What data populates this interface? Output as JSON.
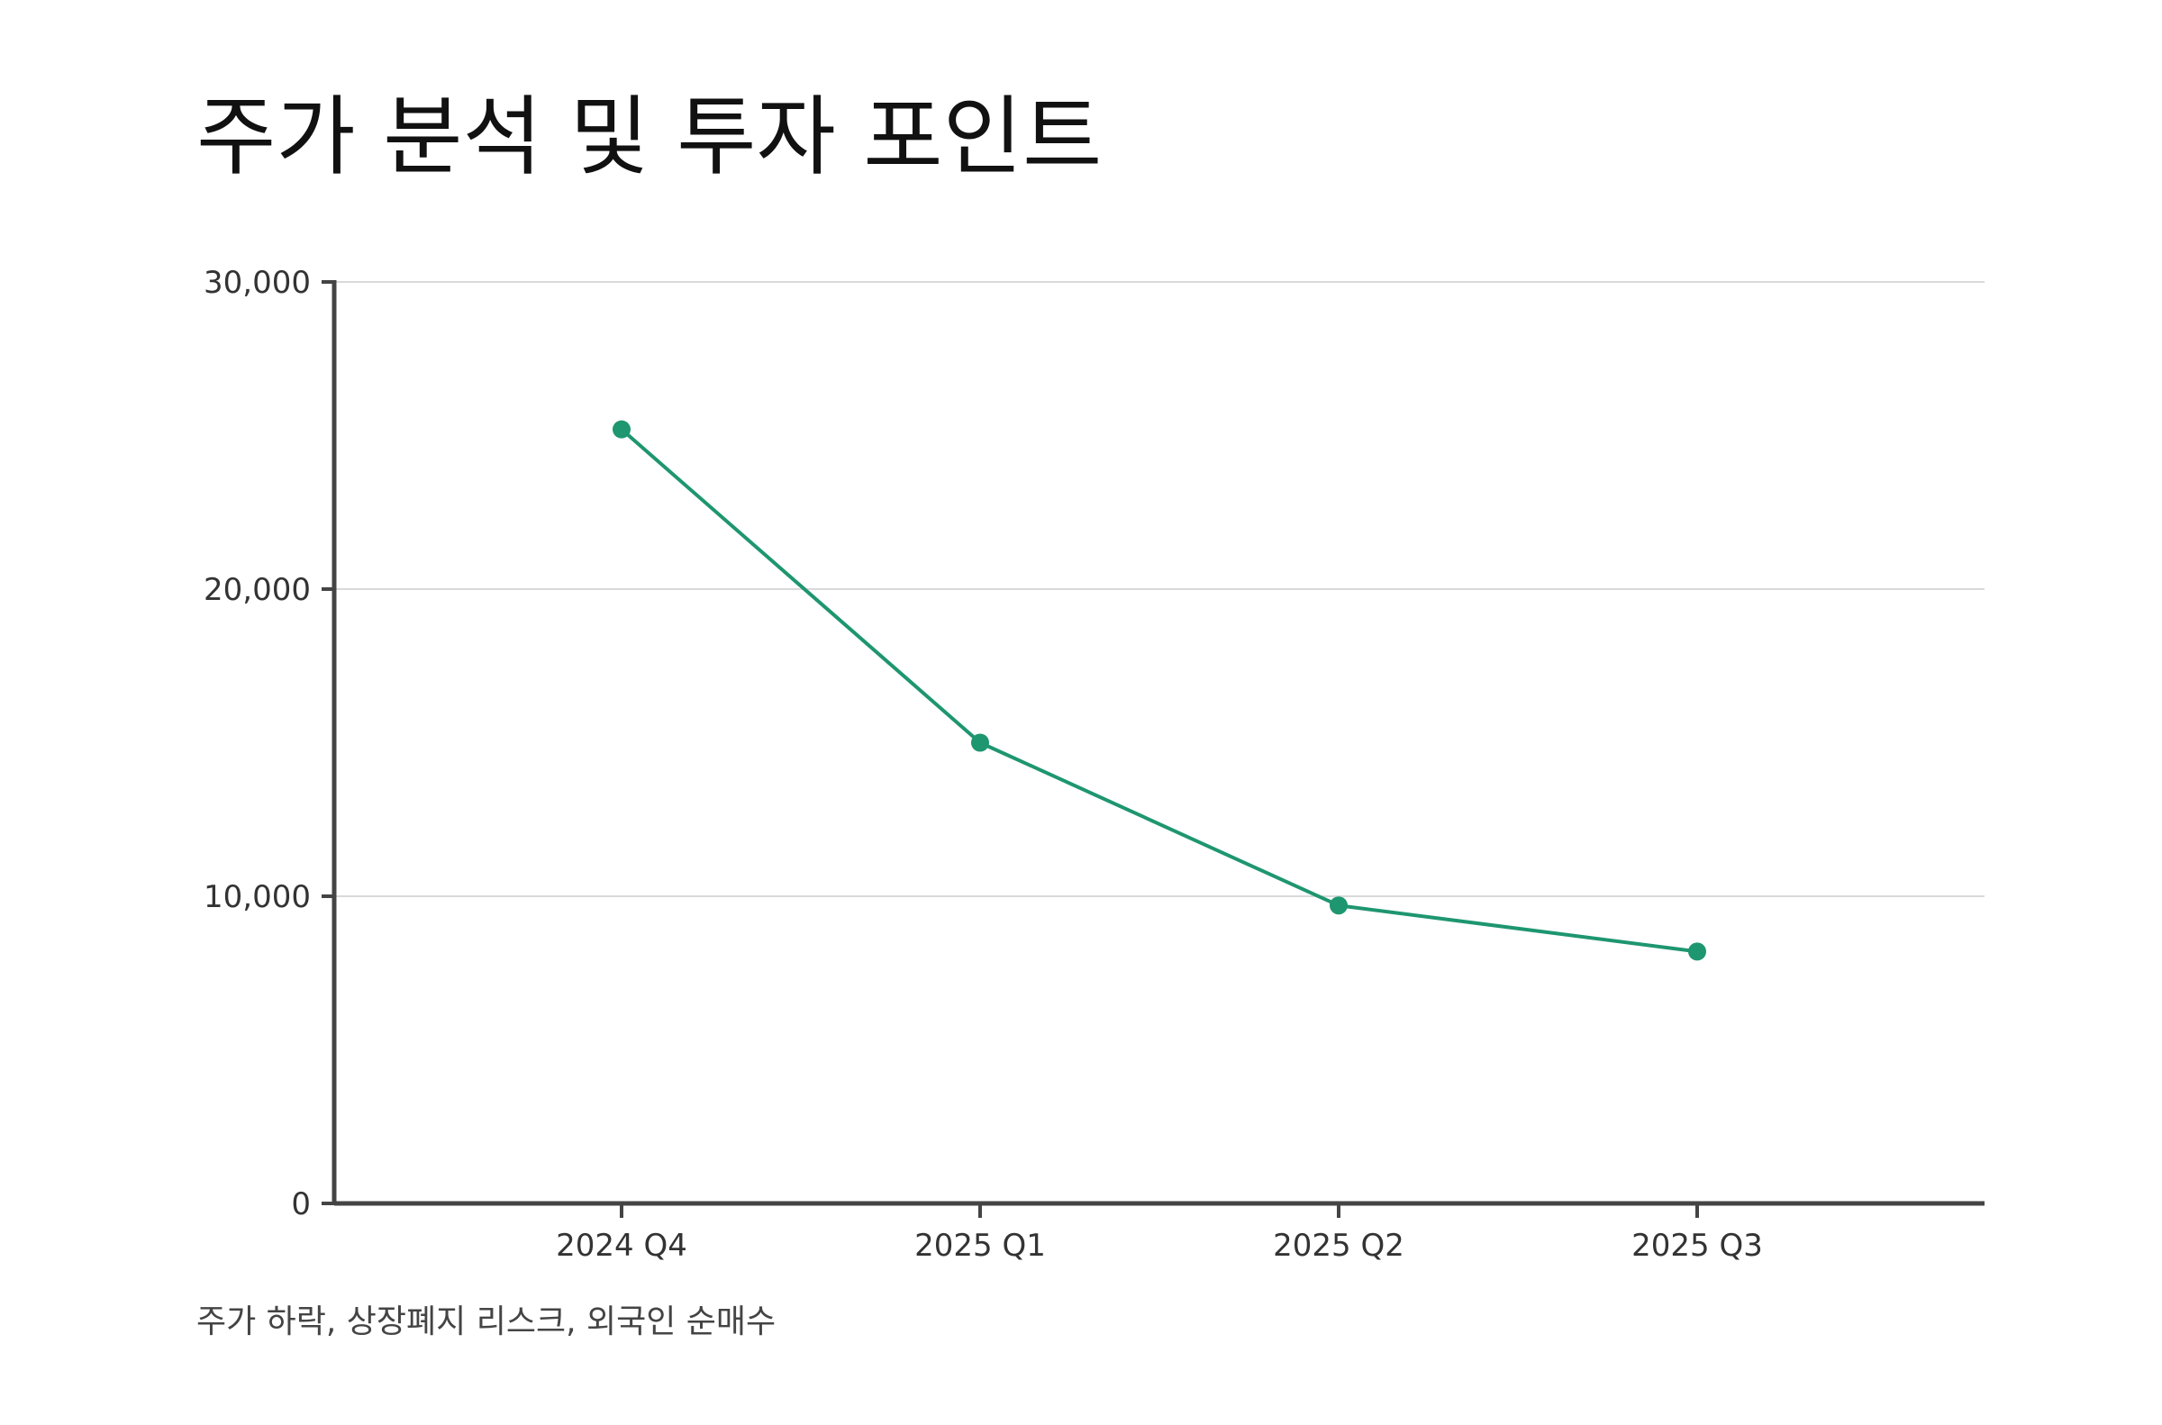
{
  "title": "주가 분석 및 투자 포인트",
  "caption": "주가 하락, 상장폐지 리스크, 외국인 순매수",
  "chart_data": {
    "type": "line",
    "title": "주가 분석 및 투자 포인트",
    "xlabel": "",
    "ylabel": "",
    "categories": [
      "2024 Q4",
      "2025 Q1",
      "2025 Q2",
      "2025 Q3"
    ],
    "series": [
      {
        "values": [
          25200,
          15000,
          9700,
          8200
        ],
        "color": "#1e9670"
      }
    ],
    "ylim": [
      0,
      30000
    ],
    "yticks": [
      0,
      10000,
      20000,
      30000
    ],
    "ytick_labels": [
      "0",
      "10,000",
      "20,000",
      "30,000"
    ],
    "grid": true,
    "legend": "none",
    "colors": {
      "line": "#1e9670",
      "axis": "#444444",
      "grid": "#d9d9d9",
      "text": "#333333"
    }
  }
}
